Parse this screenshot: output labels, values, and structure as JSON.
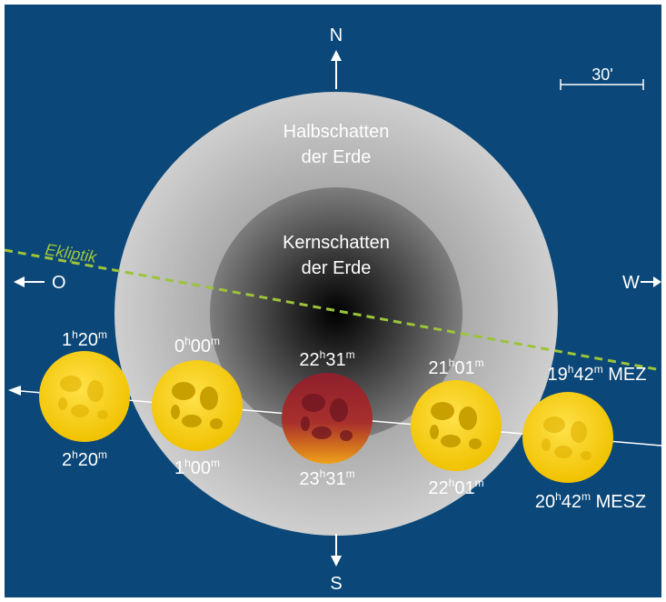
{
  "labels": {
    "north": "N",
    "south": "S",
    "east": "O",
    "west": "W",
    "scale": "30'",
    "penumbra_line1": "Halbschatten",
    "penumbra_line2": "der Erde",
    "umbra_line1": "Kernschatten",
    "umbra_line2": "der Erde",
    "ecliptic": "Ekliptik"
  },
  "moons": [
    {
      "top": {
        "h": "19",
        "m": "42",
        "suffix": " MEZ"
      },
      "bottom": {
        "h": "20",
        "m": "42",
        "suffix": " MESZ"
      },
      "color": "#f0c800"
    },
    {
      "top": {
        "h": "21",
        "m": "01",
        "suffix": ""
      },
      "bottom": {
        "h": "22",
        "m": "01",
        "suffix": ""
      },
      "color": "#f0c800"
    },
    {
      "top": {
        "h": "22",
        "m": "31",
        "suffix": ""
      },
      "bottom": {
        "h": "23",
        "m": "31",
        "suffix": ""
      },
      "color": "#a3262e"
    },
    {
      "top": {
        "h": "0",
        "m": "00",
        "suffix": ""
      },
      "bottom": {
        "h": "1",
        "m": "00",
        "suffix": ""
      },
      "color": "#f0c800"
    },
    {
      "top": {
        "h": "1",
        "m": "20",
        "suffix": ""
      },
      "bottom": {
        "h": "2",
        "m": "20",
        "suffix": ""
      },
      "color": "#f0c800"
    }
  ],
  "colors": {
    "background": "#0b4778",
    "ecliptic": "#9cc43a",
    "moon_yellow": "#f0c800",
    "moon_eclipsed": "#a3262e"
  }
}
